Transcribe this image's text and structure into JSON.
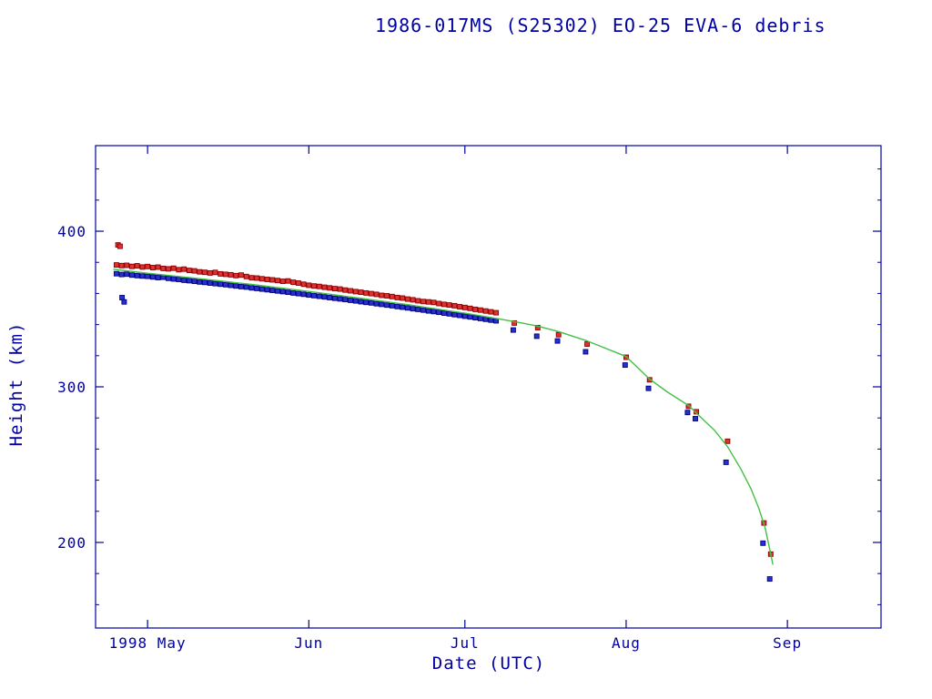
{
  "page": {
    "background": "#ffffff"
  },
  "chart_data": {
    "type": "scatter",
    "title": "1986-017MS (S25302) EO-25 EVA-6 debris",
    "xlabel": "Date (UTC)",
    "ylabel": "Height (km)",
    "grid": false,
    "legend": false,
    "x_axis": {
      "unit": "days since 1998-04-21",
      "lim": [
        0,
        151
      ],
      "ticks": [
        {
          "d": 10,
          "label": "1998 May"
        },
        {
          "d": 41,
          "label": "Jun"
        },
        {
          "d": 71,
          "label": "Jul"
        },
        {
          "d": 102,
          "label": "Aug"
        },
        {
          "d": 133,
          "label": "Sep"
        }
      ]
    },
    "y_axis": {
      "lim": [
        145,
        455
      ],
      "ticks": [
        200,
        300,
        400
      ],
      "minor_step": 20
    },
    "colors": {
      "axis": "#0000a0",
      "text": "#0000a0",
      "apogee": "#e03030",
      "apogee_edge": "#8b0000",
      "perigee": "#2830cc",
      "perigee_edge": "#000080",
      "mean_line": "#44c044"
    },
    "series": [
      {
        "name": "apogee-height",
        "type": "points",
        "marker": "square",
        "color": "#e03030",
        "edge": "#8b0000",
        "points": [
          [
            4.3,
            391.2
          ],
          [
            4.7,
            390.3
          ],
          [
            4,
            378.3
          ],
          [
            5,
            377.9
          ],
          [
            6,
            378.1
          ],
          [
            7,
            377.4
          ],
          [
            8,
            377.8
          ],
          [
            9,
            377.0
          ],
          [
            10,
            377.3
          ],
          [
            11,
            376.6
          ],
          [
            12,
            376.9
          ],
          [
            13,
            376.1
          ],
          [
            14,
            375.8
          ],
          [
            15,
            376.2
          ],
          [
            16,
            375.3
          ],
          [
            17,
            375.6
          ],
          [
            18,
            374.8
          ],
          [
            19,
            374.5
          ],
          [
            20,
            373.9
          ],
          [
            21,
            373.6
          ],
          [
            22,
            373.2
          ],
          [
            23,
            373.5
          ],
          [
            24,
            372.6
          ],
          [
            25,
            372.3
          ],
          [
            26,
            372.0
          ],
          [
            27,
            371.5
          ],
          [
            28,
            371.8
          ],
          [
            29,
            370.9
          ],
          [
            30,
            370.1
          ],
          [
            31,
            369.9
          ],
          [
            32,
            369.4
          ],
          [
            33,
            369.0
          ],
          [
            34,
            368.7
          ],
          [
            35,
            368.3
          ],
          [
            36,
            367.8
          ],
          [
            37,
            368.0
          ],
          [
            38,
            367.2
          ],
          [
            39,
            366.7
          ],
          [
            40,
            365.9
          ],
          [
            41,
            365.3
          ],
          [
            42,
            364.8
          ],
          [
            43,
            364.5
          ],
          [
            44,
            364.0
          ],
          [
            45,
            363.6
          ],
          [
            46,
            363.1
          ],
          [
            47,
            362.8
          ],
          [
            48,
            362.2
          ],
          [
            49,
            361.7
          ],
          [
            50,
            361.2
          ],
          [
            51,
            360.8
          ],
          [
            52,
            360.3
          ],
          [
            53,
            359.9
          ],
          [
            54,
            359.4
          ],
          [
            55,
            358.8
          ],
          [
            56,
            358.5
          ],
          [
            57,
            358.0
          ],
          [
            58,
            357.4
          ],
          [
            59,
            357.0
          ],
          [
            60,
            356.4
          ],
          [
            61,
            355.9
          ],
          [
            62,
            355.3
          ],
          [
            63,
            354.8
          ],
          [
            64,
            354.6
          ],
          [
            65,
            354.2
          ],
          [
            66,
            353.5
          ],
          [
            67,
            353.0
          ],
          [
            68,
            352.6
          ],
          [
            69,
            352.1
          ],
          [
            70,
            351.5
          ],
          [
            71,
            351.0
          ],
          [
            72,
            350.4
          ],
          [
            73,
            349.8
          ],
          [
            74,
            349.3
          ],
          [
            75,
            348.7
          ],
          [
            76,
            348.2
          ],
          [
            77,
            347.6
          ],
          [
            80.5,
            341.0
          ],
          [
            85,
            338.0
          ],
          [
            89,
            333.5
          ],
          [
            94.5,
            327.5
          ],
          [
            102,
            319.0
          ],
          [
            106.5,
            304.5
          ],
          [
            114,
            287.5
          ],
          [
            115.5,
            284.0
          ],
          [
            121.5,
            265.0
          ],
          [
            128.5,
            212.5
          ],
          [
            129.8,
            192.5
          ]
        ]
      },
      {
        "name": "perigee-height",
        "type": "points",
        "marker": "square",
        "color": "#2830cc",
        "edge": "#000080",
        "points": [
          [
            5.1,
            357.3
          ],
          [
            5.5,
            354.6
          ],
          [
            4,
            372.7
          ],
          [
            5,
            372.2
          ],
          [
            6,
            372.4
          ],
          [
            7,
            371.8
          ],
          [
            8,
            371.5
          ],
          [
            9,
            371.2
          ],
          [
            10,
            371.0
          ],
          [
            11,
            370.6
          ],
          [
            12,
            370.2
          ],
          [
            13,
            370.4
          ],
          [
            14,
            369.7
          ],
          [
            15,
            369.3
          ],
          [
            16,
            369.0
          ],
          [
            17,
            368.5
          ],
          [
            18,
            368.2
          ],
          [
            19,
            367.8
          ],
          [
            20,
            367.4
          ],
          [
            21,
            367.1
          ],
          [
            22,
            366.7
          ],
          [
            23,
            366.3
          ],
          [
            24,
            366.0
          ],
          [
            25,
            365.6
          ],
          [
            26,
            365.2
          ],
          [
            27,
            364.8
          ],
          [
            28,
            364.4
          ],
          [
            29,
            364.1
          ],
          [
            30,
            363.6
          ],
          [
            31,
            363.2
          ],
          [
            32,
            362.8
          ],
          [
            33,
            362.4
          ],
          [
            34,
            362.0
          ],
          [
            35,
            361.6
          ],
          [
            36,
            361.2
          ],
          [
            37,
            360.8
          ],
          [
            38,
            360.3
          ],
          [
            39,
            359.9
          ],
          [
            40,
            359.5
          ],
          [
            41,
            359.0
          ],
          [
            42,
            358.6
          ],
          [
            43,
            358.2
          ],
          [
            44,
            357.8
          ],
          [
            45,
            357.3
          ],
          [
            46,
            356.9
          ],
          [
            47,
            356.5
          ],
          [
            48,
            356.1
          ],
          [
            49,
            355.6
          ],
          [
            50,
            355.2
          ],
          [
            51,
            354.7
          ],
          [
            52,
            354.3
          ],
          [
            53,
            353.9
          ],
          [
            54,
            353.4
          ],
          [
            55,
            353.0
          ],
          [
            56,
            352.5
          ],
          [
            57,
            352.1
          ],
          [
            58,
            351.6
          ],
          [
            59,
            351.2
          ],
          [
            60,
            350.7
          ],
          [
            61,
            350.2
          ],
          [
            62,
            349.8
          ],
          [
            63,
            349.3
          ],
          [
            64,
            348.8
          ],
          [
            65,
            348.4
          ],
          [
            66,
            347.9
          ],
          [
            67,
            347.4
          ],
          [
            68,
            346.9
          ],
          [
            69,
            346.4
          ],
          [
            70,
            345.9
          ],
          [
            71,
            345.4
          ],
          [
            72,
            344.9
          ],
          [
            73,
            344.4
          ],
          [
            74,
            343.9
          ],
          [
            75,
            343.4
          ],
          [
            76,
            342.9
          ],
          [
            77,
            342.4
          ],
          [
            80.3,
            336.5
          ],
          [
            84.8,
            332.5
          ],
          [
            88.8,
            329.5
          ],
          [
            94.2,
            322.5
          ],
          [
            101.8,
            314.0
          ],
          [
            106.3,
            299.0
          ],
          [
            113.8,
            283.5
          ],
          [
            115.3,
            279.5
          ],
          [
            121.2,
            251.5
          ],
          [
            128.3,
            199.5
          ],
          [
            129.6,
            176.5
          ]
        ]
      },
      {
        "name": "mean-height-fit",
        "type": "line",
        "color": "#44c044",
        "points": [
          [
            3.5,
            375.5
          ],
          [
            10,
            373.0
          ],
          [
            20,
            369.5
          ],
          [
            30,
            365.8
          ],
          [
            41,
            361.3
          ],
          [
            50,
            357.3
          ],
          [
            60,
            352.8
          ],
          [
            71,
            347.3
          ],
          [
            77,
            344.0
          ],
          [
            82,
            341.0
          ],
          [
            85,
            339.0
          ],
          [
            89,
            335.5
          ],
          [
            94.5,
            329.5
          ],
          [
            102,
            319.5
          ],
          [
            106.5,
            305.0
          ],
          [
            110,
            296.5
          ],
          [
            114,
            288.0
          ],
          [
            116,
            281.5
          ],
          [
            119,
            272.0
          ],
          [
            121.5,
            261.5
          ],
          [
            124,
            247.5
          ],
          [
            126,
            234.5
          ],
          [
            127.5,
            222.0
          ],
          [
            128.7,
            209.5
          ],
          [
            129.7,
            194.0
          ],
          [
            130.2,
            186.0
          ]
        ]
      }
    ]
  }
}
